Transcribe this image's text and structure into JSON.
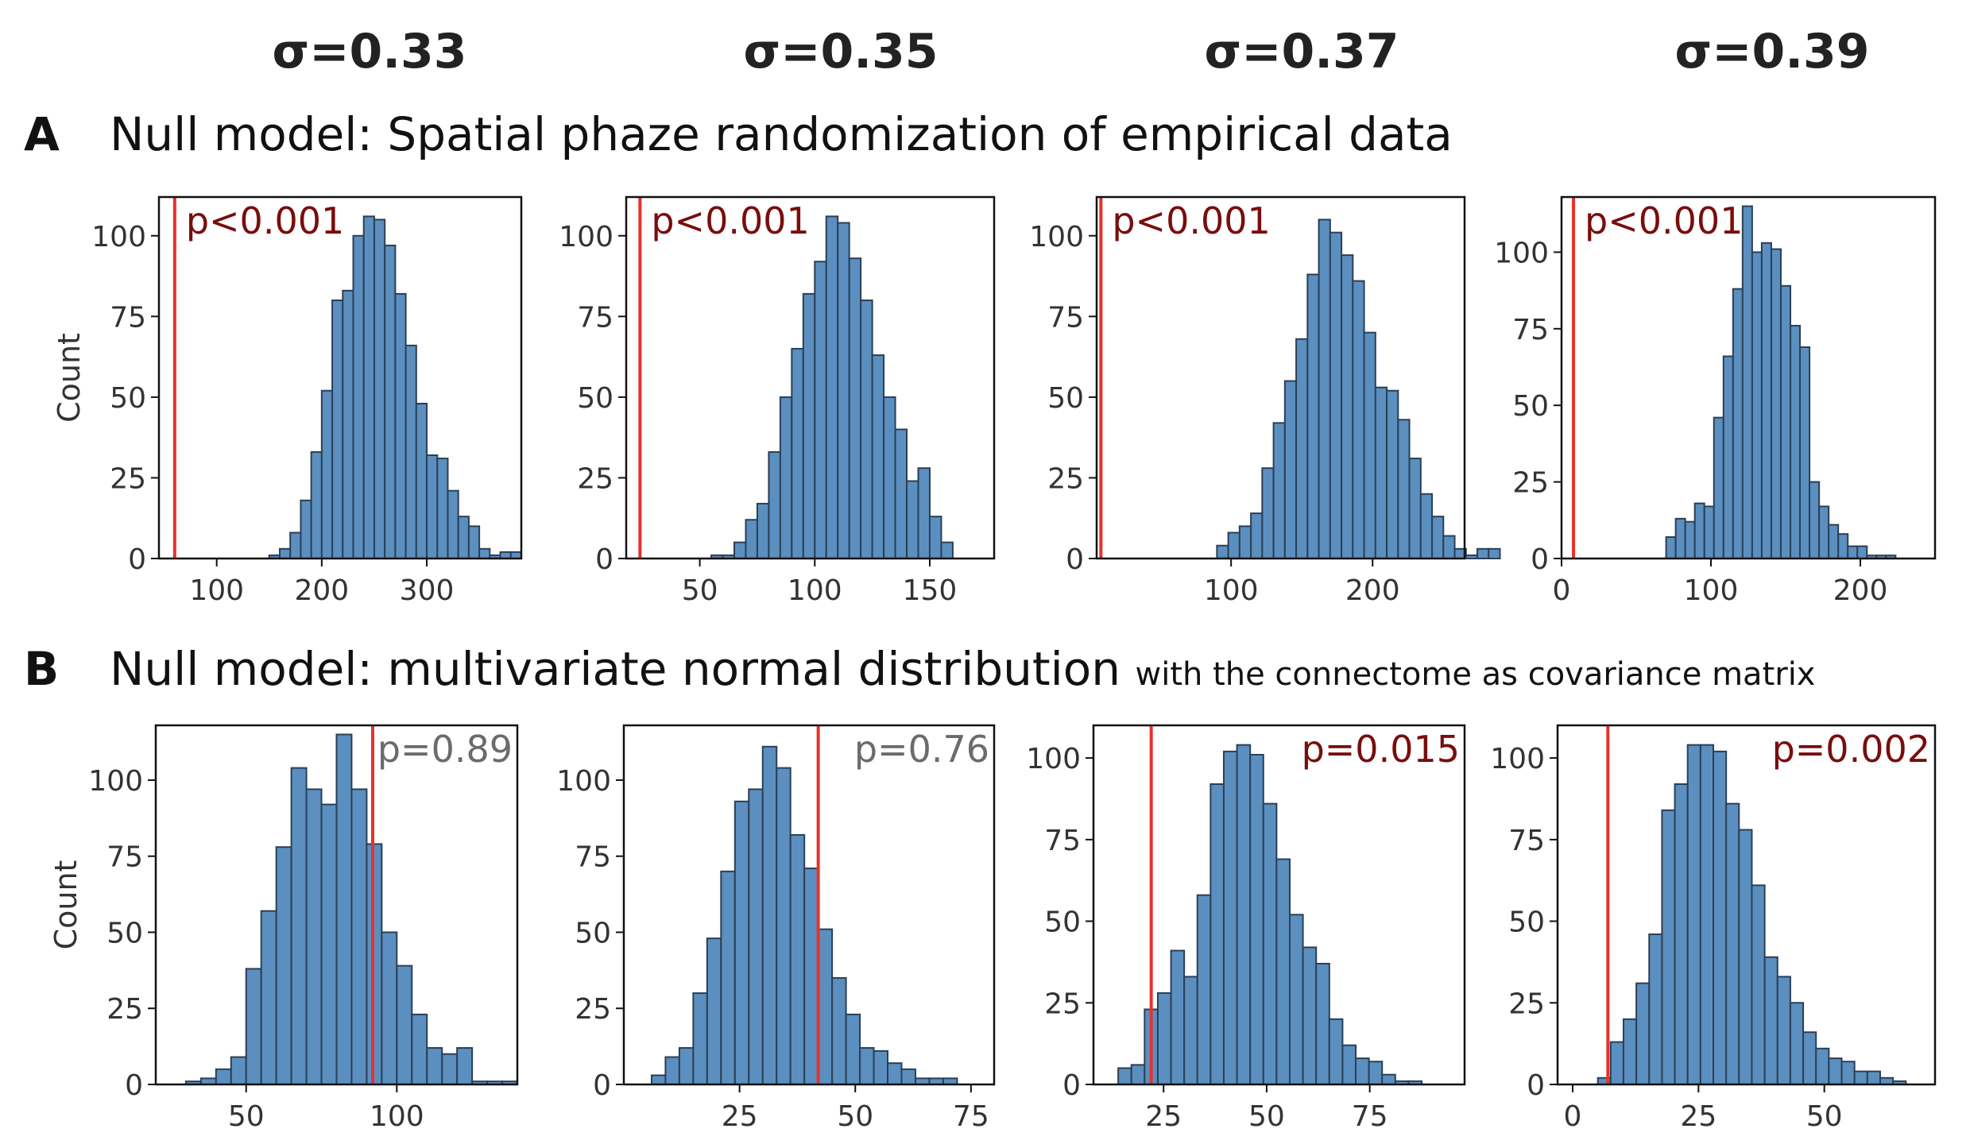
{
  "sigma_labels": [
    "σ=0.33",
    "σ=0.35",
    "σ=0.37",
    "σ=0.39"
  ],
  "row_a": {
    "letter": "A",
    "title": "Null model: Spatial phaze randomization of empirical data"
  },
  "row_b": {
    "letter": "B",
    "title": "Null model: multivariate normal distribution",
    "subtitle": "with the connectome as covariance matrix"
  },
  "y_axis_label": "Count",
  "colors": {
    "bar": "#5b8fc0",
    "bar_edge": "#2b3f55",
    "line": "#e8312a",
    "p_significant": "#7a0d0d",
    "p_nonsignificant": "#6b6b6b"
  },
  "chart_data": [
    {
      "type": "bar",
      "row": "A",
      "sigma": "σ=0.33",
      "xlim": [
        45,
        390
      ],
      "ylim": [
        0,
        112
      ],
      "xticks": [
        100,
        200,
        300
      ],
      "yticks": [
        0,
        25,
        50,
        75,
        100
      ],
      "bin_start": 150,
      "bin_width": 10,
      "values": [
        1,
        3,
        8,
        18,
        33,
        52,
        80,
        83,
        100,
        106,
        105,
        97,
        82,
        66,
        48,
        32,
        31,
        21,
        13,
        10,
        3,
        1,
        2,
        2
      ],
      "red_line_x": 60,
      "p_label": "p<0.001",
      "p_significant": true,
      "ylabel": "Count"
    },
    {
      "type": "bar",
      "row": "A",
      "sigma": "σ=0.35",
      "xlim": [
        18,
        178
      ],
      "ylim": [
        0,
        112
      ],
      "xticks": [
        50,
        100,
        150
      ],
      "yticks": [
        0,
        25,
        50,
        75,
        100
      ],
      "bin_start": 40,
      "bin_width": 5,
      "values": [
        0,
        0,
        0,
        1,
        1,
        5,
        12,
        17,
        33,
        50,
        65,
        82,
        92,
        106,
        104,
        93,
        80,
        63,
        50,
        40,
        24,
        28,
        13,
        5
      ],
      "red_line_x": 24,
      "p_label": "p<0.001",
      "p_significant": true,
      "ylabel": ""
    },
    {
      "type": "bar",
      "row": "A",
      "sigma": "σ=0.37",
      "xlim": [
        5,
        265
      ],
      "ylim": [
        0,
        112
      ],
      "xticks": [
        100,
        200
      ],
      "yticks": [
        0,
        25,
        50,
        75,
        100
      ],
      "bin_start": 90,
      "bin_width": 8,
      "values": [
        4,
        8,
        10,
        14,
        28,
        42,
        55,
        68,
        88,
        105,
        101,
        94,
        86,
        70,
        53,
        52,
        43,
        31,
        20,
        13,
        7,
        3,
        1,
        3,
        3
      ],
      "red_line_x": 8,
      "p_label": "p<0.001",
      "p_significant": true,
      "ylabel": ""
    },
    {
      "type": "bar",
      "row": "A",
      "sigma": "σ=0.39",
      "xlim": [
        0,
        250
      ],
      "ylim": [
        0,
        118
      ],
      "xticks": [
        0,
        100,
        200
      ],
      "yticks": [
        0,
        25,
        50,
        75,
        100
      ],
      "bin_start": 70,
      "bin_width": 6.4,
      "values": [
        7,
        13,
        12,
        18,
        17,
        46,
        66,
        88,
        115,
        100,
        103,
        101,
        89,
        76,
        69,
        25,
        17,
        11,
        8,
        4,
        4,
        1,
        1,
        1
      ],
      "red_line_x": 8,
      "p_label": "p<0.001",
      "p_significant": true,
      "ylabel": ""
    },
    {
      "type": "bar",
      "row": "B",
      "sigma": "σ=0.33",
      "xlim": [
        20,
        140
      ],
      "ylim": [
        0,
        118
      ],
      "xticks": [
        50,
        100
      ],
      "yticks": [
        0,
        25,
        50,
        75,
        100
      ],
      "bin_start": 30,
      "bin_width": 5,
      "values": [
        1,
        2,
        5,
        9,
        38,
        57,
        78,
        104,
        97,
        92,
        115,
        97,
        79,
        50,
        39,
        23,
        12,
        10,
        12,
        1,
        1,
        1
      ],
      "red_line_x": 92,
      "p_label": "p=0.89",
      "p_significant": false,
      "ylabel": "Count"
    },
    {
      "type": "bar",
      "row": "B",
      "sigma": "σ=0.35",
      "xlim": [
        0,
        80
      ],
      "ylim": [
        0,
        118
      ],
      "xticks": [
        25,
        50,
        75
      ],
      "yticks": [
        0,
        25,
        50,
        75,
        100
      ],
      "bin_start": 6,
      "bin_width": 3,
      "values": [
        3,
        9,
        12,
        30,
        48,
        70,
        93,
        97,
        111,
        104,
        82,
        71,
        51,
        35,
        23,
        12,
        11,
        7,
        5,
        2,
        2,
        2
      ],
      "red_line_x": 42,
      "p_label": "p=0.76",
      "p_significant": false,
      "ylabel": ""
    },
    {
      "type": "bar",
      "row": "B",
      "sigma": "σ=0.37",
      "xlim": [
        8,
        98
      ],
      "ylim": [
        0,
        110
      ],
      "xticks": [
        25,
        50,
        75
      ],
      "yticks": [
        0,
        25,
        50,
        75,
        100
      ],
      "bin_start": 14,
      "bin_width": 3.2,
      "values": [
        5,
        6,
        23,
        28,
        41,
        33,
        58,
        92,
        102,
        104,
        101,
        86,
        69,
        52,
        42,
        37,
        20,
        12,
        8,
        7,
        3,
        1,
        1
      ],
      "red_line_x": 22,
      "p_label": "p=0.015",
      "p_significant": true,
      "ylabel": ""
    },
    {
      "type": "bar",
      "row": "B",
      "sigma": "σ=0.39",
      "xlim": [
        -3,
        72
      ],
      "ylim": [
        0,
        110
      ],
      "xticks": [
        0,
        25,
        50
      ],
      "yticks": [
        0,
        25,
        50,
        75,
        100
      ],
      "bin_start": 5,
      "bin_width": 2.55,
      "values": [
        2,
        13,
        20,
        31,
        46,
        84,
        92,
        104,
        104,
        102,
        86,
        78,
        61,
        39,
        33,
        25,
        16,
        11,
        8,
        7,
        4,
        4,
        2,
        1
      ],
      "red_line_x": 7,
      "p_label": "p=0.002",
      "p_significant": true,
      "ylabel": ""
    }
  ]
}
